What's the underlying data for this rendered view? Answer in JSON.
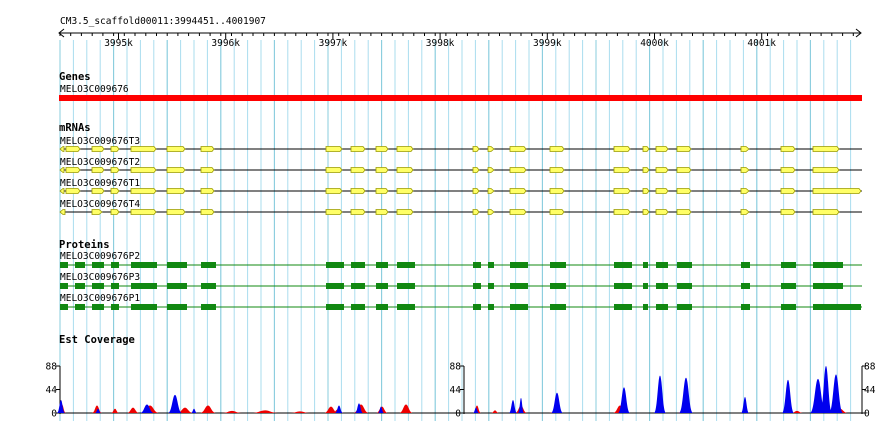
{
  "region": "CM3.5_scaffold00011:3994451..4001907",
  "ruler": {
    "ticks": [
      "3995k",
      "3996k",
      "3997k",
      "3998k",
      "3999k",
      "4000k",
      "4001k"
    ]
  },
  "tracks": {
    "genes": {
      "title": "Genes",
      "items": [
        "MELO3C009676"
      ]
    },
    "mrnas": {
      "title": "mRNAs",
      "items": [
        "MELO3C009676T3",
        "MELO3C009676T2",
        "MELO3C009676T1",
        "MELO3C009676T4"
      ]
    },
    "proteins": {
      "title": "Proteins",
      "items": [
        "MELO3C009676P2",
        "MELO3C009676P3",
        "MELO3C009676P1"
      ]
    },
    "coverage": {
      "title": "Est Coverage",
      "axis_ticks": [
        "88",
        "44",
        "0"
      ]
    }
  },
  "colors": {
    "gene": "#ff0000",
    "mrna_fill": "#ffff66",
    "mrna_stroke": "#999900",
    "protein": "#118811",
    "coverage_forward": "#0000ee",
    "coverage_reverse": "#ee0000",
    "grid": "#aaddee"
  }
}
